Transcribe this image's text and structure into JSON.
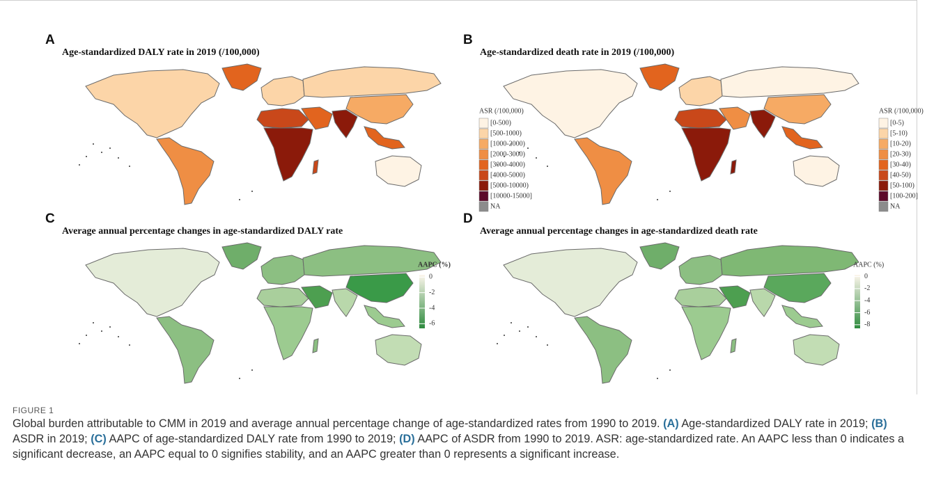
{
  "figure": {
    "panels": [
      {
        "letter": "A",
        "title": "Age-standardized DALY rate in 2019 (/100,000)",
        "legend": {
          "title": "ASR (/100,000)",
          "items": [
            {
              "label": "[0-500)",
              "color": "#fef3e4"
            },
            {
              "label": "[500-1000)",
              "color": "#fcd5a8"
            },
            {
              "label": "[1000-2000)",
              "color": "#f6aa64"
            },
            {
              "label": "[2000-3000)",
              "color": "#ef8e44"
            },
            {
              "label": "[3000-4000)",
              "color": "#e2641e"
            },
            {
              "label": "[4000-5000)",
              "color": "#c9481a"
            },
            {
              "label": "[5000-10000)",
              "color": "#8b1a0a"
            },
            {
              "label": "[10000-15000]",
              "color": "#5c0a2a"
            },
            {
              "label": "NA",
              "color": "#8c8c8c"
            }
          ]
        }
      },
      {
        "letter": "B",
        "title": "Age-standardized death rate in 2019 (/100,000)",
        "legend": {
          "title": "ASR (/100,000)",
          "items": [
            {
              "label": "[0-5)",
              "color": "#fef3e4"
            },
            {
              "label": "[5-10)",
              "color": "#fcd5a8"
            },
            {
              "label": "[10-20)",
              "color": "#f6aa64"
            },
            {
              "label": "[20-30)",
              "color": "#ef8e44"
            },
            {
              "label": "[30-40)",
              "color": "#e2641e"
            },
            {
              "label": "[40-50)",
              "color": "#c9481a"
            },
            {
              "label": "[50-100)",
              "color": "#8b1a0a"
            },
            {
              "label": "[100-200]",
              "color": "#5c0a2a"
            },
            {
              "label": "NA",
              "color": "#8c8c8c"
            }
          ]
        }
      },
      {
        "letter": "C",
        "title": "Average annual percentage changes in age-standardized DALY rate",
        "colorbar": {
          "title": "AAPC (%)",
          "lim": [
            -6.6,
            0.3
          ],
          "ticks": [
            0,
            -2,
            -4,
            -6
          ],
          "colors": [
            "#2e8b3e",
            "#fdf6ec"
          ]
        }
      },
      {
        "letter": "D",
        "title": "Average annual percentage changes in age-standardized death rate",
        "colorbar": {
          "title": "AAPC (%)",
          "lim": [
            -8.6,
            0.3
          ],
          "ticks": [
            0,
            -2,
            -4,
            -6,
            -8
          ],
          "colors": [
            "#2e8b3e",
            "#fdf6ec"
          ]
        }
      }
    ],
    "caption": {
      "label": "FIGURE 1",
      "lead": "Global burden attributable to CMM in 2019 and average annual percentage change of age-standardized rates from 1990 to 2019. ",
      "items": [
        {
          "tag": "(A)",
          "text": " Age-standardized DALY rate in 2019; "
        },
        {
          "tag": "(B)",
          "text": " ASDR in 2019; "
        },
        {
          "tag": "(C)",
          "text": " AAPC of age-standardized DALY rate from 1990 to 2019; "
        },
        {
          "tag": "(D)",
          "text": " AAPC of ASDR from 1990 to 2019. "
        }
      ],
      "tail": "ASR: age-standardized rate. An AAPC less than 0 indicates a significant decrease, an AAPC equal to 0 signifies stability, and an AAPC greater than 0 represents a significant increase."
    }
  }
}
